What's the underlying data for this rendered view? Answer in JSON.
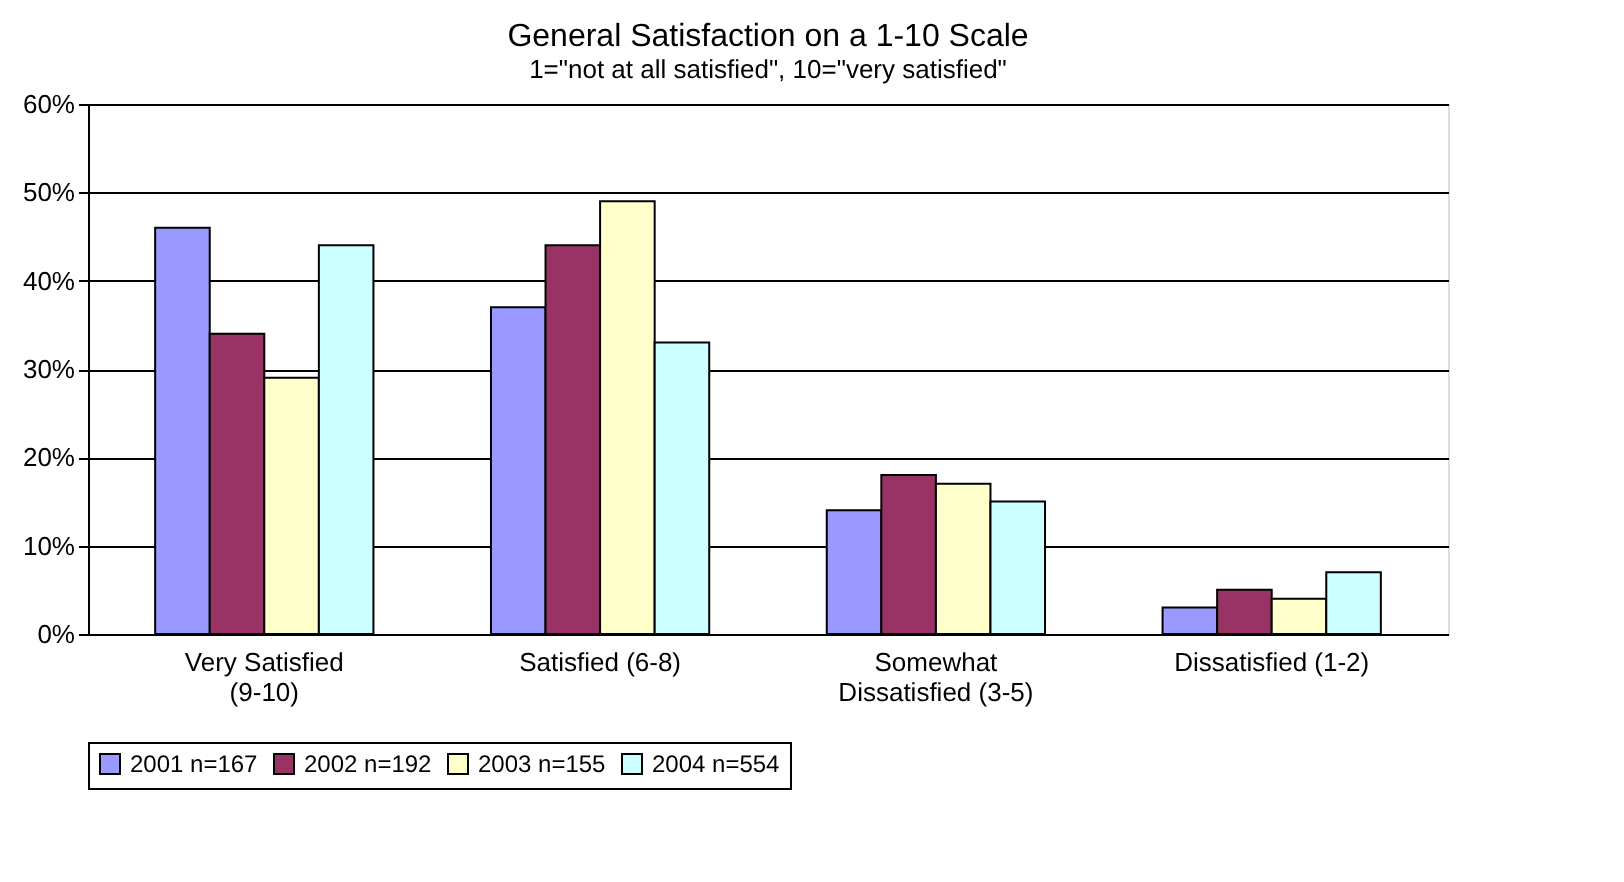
{
  "chart_data": {
    "type": "bar",
    "title": "General Satisfaction on a 1-10 Scale",
    "subtitle": "1=\"not at all satisfied\", 10=\"very satisfied\"",
    "categories": [
      "Very Satisfied\n(9-10)",
      "Satisfied (6-8)",
      "Somewhat\nDissatisfied (3-5)",
      "Dissatisfied (1-2)"
    ],
    "series": [
      {
        "name": "2001 n=167",
        "color": "#9999ff",
        "values": [
          46,
          37,
          14,
          3
        ]
      },
      {
        "name": "2002 n=192",
        "color": "#993366",
        "values": [
          34,
          44,
          18,
          5
        ]
      },
      {
        "name": "2003 n=155",
        "color": "#ffffcc",
        "values": [
          29,
          49,
          17,
          4
        ]
      },
      {
        "name": "2004 n=554",
        "color": "#ccffff",
        "values": [
          44,
          33,
          15,
          7
        ]
      }
    ],
    "ylim": [
      0,
      60
    ],
    "yticks": [
      {
        "value": 0,
        "label": "0%"
      },
      {
        "value": 10,
        "label": "10%"
      },
      {
        "value": 20,
        "label": "20%"
      },
      {
        "value": 30,
        "label": "30%"
      },
      {
        "value": 40,
        "label": "40%"
      },
      {
        "value": 50,
        "label": "50%"
      },
      {
        "value": 60,
        "label": "60%"
      }
    ],
    "grid": "y",
    "legend": "bottom"
  }
}
